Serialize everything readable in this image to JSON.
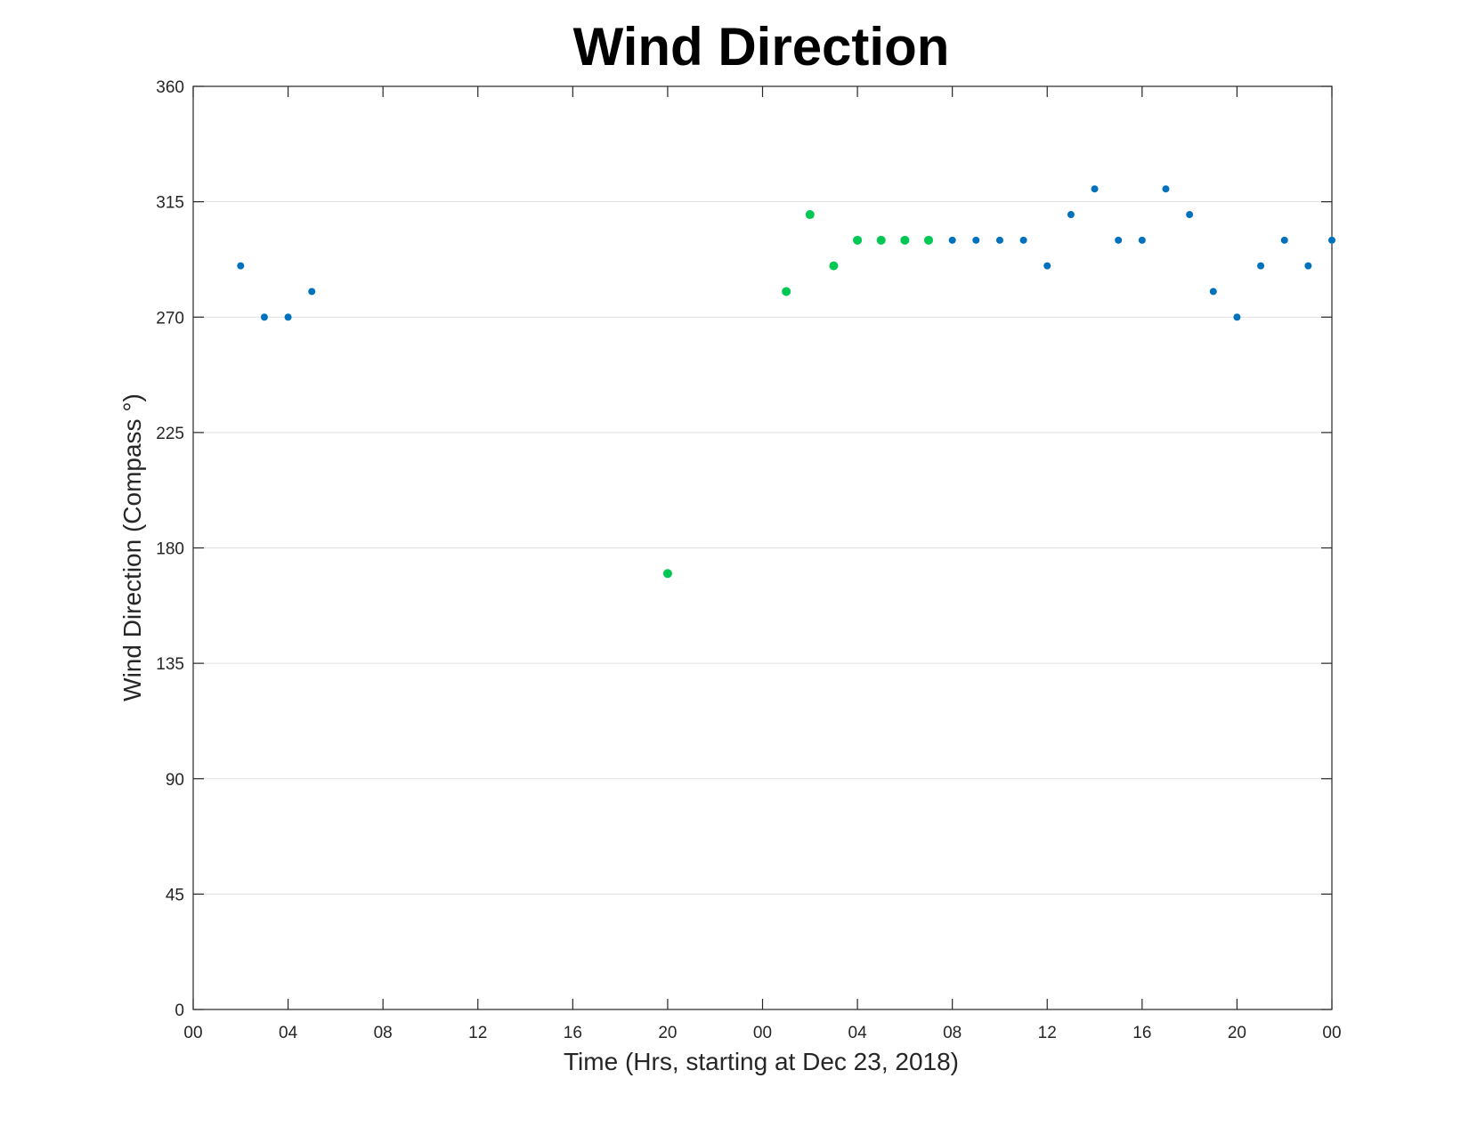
{
  "chart_data": {
    "type": "scatter",
    "title": "Wind Direction",
    "xlabel": "Time (Hrs, starting at Dec 23, 2018)",
    "ylabel": "Wind Direction (Compass °)",
    "xlim": [
      0,
      48
    ],
    "ylim": [
      0,
      360
    ],
    "x_ticks": [
      {
        "value": 0,
        "label": "00"
      },
      {
        "value": 4,
        "label": "04"
      },
      {
        "value": 8,
        "label": "08"
      },
      {
        "value": 12,
        "label": "12"
      },
      {
        "value": 16,
        "label": "16"
      },
      {
        "value": 20,
        "label": "20"
      },
      {
        "value": 24,
        "label": "00"
      },
      {
        "value": 28,
        "label": "04"
      },
      {
        "value": 32,
        "label": "08"
      },
      {
        "value": 36,
        "label": "12"
      },
      {
        "value": 40,
        "label": "16"
      },
      {
        "value": 44,
        "label": "20"
      },
      {
        "value": 48,
        "label": "00"
      }
    ],
    "y_ticks": [
      0,
      45,
      90,
      135,
      180,
      225,
      270,
      315,
      360
    ],
    "grid": "horizontal",
    "series": [
      {
        "color": "#0072bd",
        "x": [
          2,
          3,
          4,
          5,
          32,
          33,
          34,
          35,
          36,
          37,
          38,
          39,
          40,
          41,
          42,
          43,
          44,
          45,
          46,
          47,
          48
        ],
        "y": [
          290,
          270,
          270,
          280,
          300,
          300,
          300,
          300,
          290,
          310,
          320,
          300,
          300,
          320,
          310,
          280,
          270,
          290,
          300,
          290,
          300
        ]
      },
      {
        "color": "#00c853",
        "x": [
          20,
          25,
          26,
          27,
          28,
          29,
          30,
          31
        ],
        "y": [
          170,
          280,
          310,
          290,
          300,
          300,
          300,
          300
        ]
      }
    ]
  }
}
